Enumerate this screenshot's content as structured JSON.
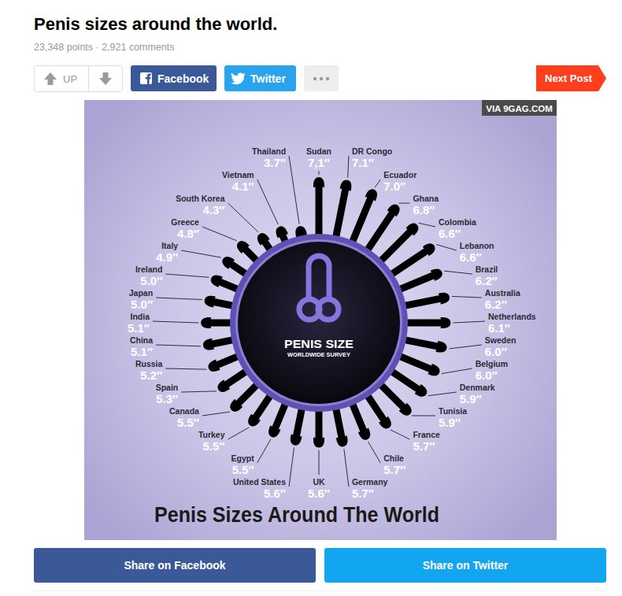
{
  "page": {
    "title": "Penis sizes around the world.",
    "meta": "23,348 points · 2,921 comments",
    "buttons": {
      "up": "UP",
      "facebook": "Facebook",
      "twitter": "Twitter",
      "next": "Next Post"
    },
    "watermark": "VIA 9GAG.COM",
    "share": [
      "Share on Facebook",
      "Share on Twitter"
    ]
  },
  "chart_data": {
    "type": "radial_bar",
    "title": "Penis Sizes Around The World",
    "annotations": [
      "PENIS SIZE",
      "WORLDWIDE SURVEY"
    ],
    "categories": [
      "Sudan",
      "DR Congo",
      "Ecuador",
      "Ghana",
      "Colombia",
      "Lebanon",
      "Brazil",
      "Australia",
      "Netherlands",
      "Sweden",
      "Belgium",
      "Denmark",
      "Tunisia",
      "France",
      "Chile",
      "Germany",
      "UK",
      "United States",
      "Egypt",
      "Turkey",
      "Canada",
      "Spain",
      "Russia",
      "China",
      "India",
      "Japan",
      "Ireland",
      "Italy",
      "Greece",
      "South Korea",
      "Vietnam",
      "Thailand"
    ],
    "values": [
      7.1,
      7.1,
      7.0,
      6.8,
      6.6,
      6.6,
      6.2,
      6.2,
      6.1,
      6.0,
      6.0,
      5.9,
      5.9,
      5.7,
      5.7,
      5.7,
      5.6,
      5.6,
      5.5,
      5.5,
      5.5,
      5.3,
      5.2,
      5.1,
      5.1,
      5.0,
      5.0,
      4.9,
      4.8,
      4.3,
      4.1,
      3.7
    ],
    "value_labels": [
      "7,1″",
      "7.1″",
      "7.0″",
      "6.8″",
      "6.6″",
      "6.6″",
      "6.2″",
      "6.2″",
      "6.1″",
      "6.0″",
      "6.0″",
      "5.9″",
      "5.9″",
      "5.7″",
      "5.7″",
      "5.7″",
      "5.6″",
      "5.6″",
      "5.5″",
      "5.5″",
      "5.5″",
      "5.3″",
      "5.2″",
      "5.1″",
      "5.1″",
      "5.0″",
      "5.0″",
      "4.9″",
      "4.8″",
      "4.3″",
      "4.1″",
      "3.7″"
    ],
    "color": "#000000",
    "ylim": [
      0,
      7.1
    ],
    "data_labels": true,
    "tick_labels": false
  }
}
